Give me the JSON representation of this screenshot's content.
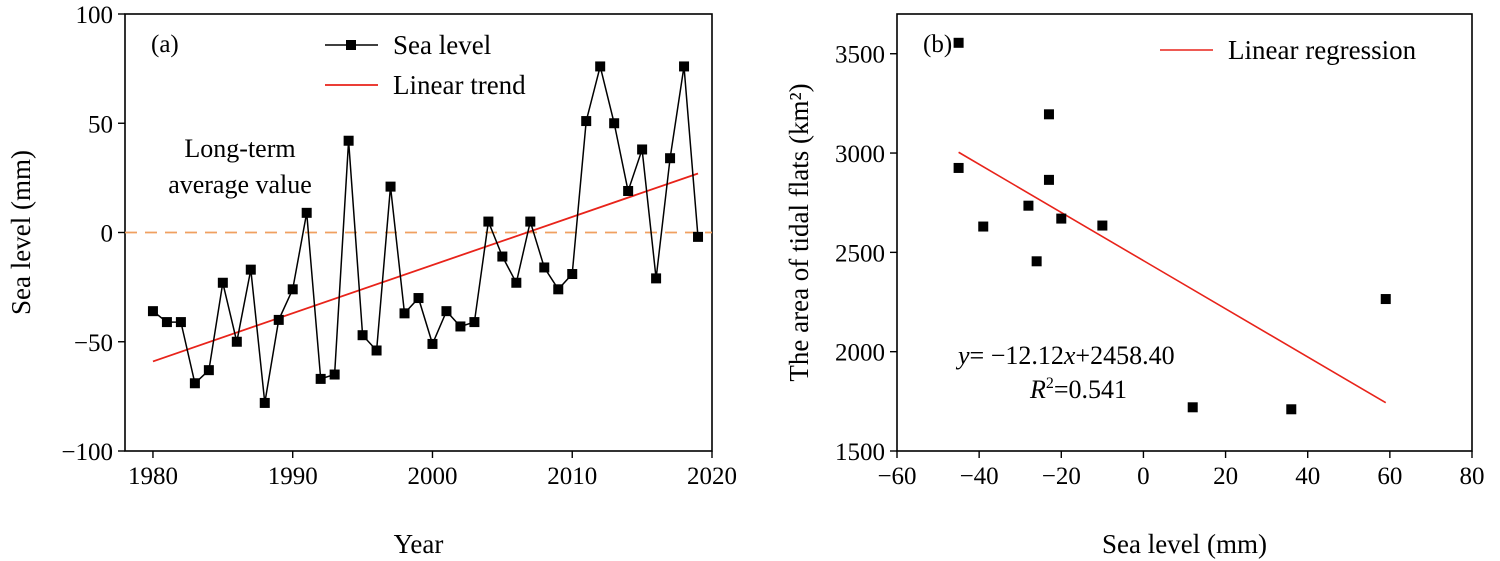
{
  "chart_data": [
    {
      "panel_label": "(a)",
      "type": "line",
      "xlabel": "Year",
      "ylabel": "Sea level (mm)",
      "xlim": [
        1978,
        2020
      ],
      "ylim": [
        -100,
        100
      ],
      "xticks": [
        "1980",
        "1990",
        "2000",
        "2010",
        "2020"
      ],
      "yticks": [
        "−100",
        "−50",
        "0",
        "50",
        "100"
      ],
      "legend_position": "top-center",
      "annotation": [
        "Long-term",
        "average value"
      ],
      "series": [
        {
          "name": "Sea level",
          "color": "#000000",
          "marker": "square",
          "x": [
            1980,
            1981,
            1982,
            1983,
            1984,
            1985,
            1986,
            1987,
            1988,
            1989,
            1990,
            1991,
            1992,
            1993,
            1994,
            1995,
            1996,
            1997,
            1998,
            1999,
            2000,
            2001,
            2002,
            2003,
            2004,
            2005,
            2006,
            2007,
            2008,
            2009,
            2010,
            2011,
            2012,
            2013,
            2014,
            2015,
            2016,
            2017,
            2018,
            2019
          ],
          "values": [
            -36,
            -41,
            -41,
            -69,
            -63,
            -23,
            -50,
            -17,
            -78,
            -40,
            -26,
            9,
            -67,
            -65,
            42,
            -47,
            -54,
            21,
            -37,
            -30,
            -51,
            -36,
            -43,
            -41,
            5,
            -11,
            -23,
            5,
            -16,
            -26,
            -19,
            51,
            76,
            50,
            19,
            38,
            -21,
            34,
            76,
            -2
          ]
        },
        {
          "name": "Linear trend",
          "color": "#e8231a",
          "x": [
            1980,
            2019
          ],
          "values": [
            -59,
            27
          ]
        }
      ],
      "reference_line": {
        "value": 0,
        "color": "#f0a060",
        "style": "dashed"
      }
    },
    {
      "panel_label": "(b)",
      "type": "scatter",
      "xlabel": "Sea level (mm)",
      "ylabel": "The area of tidal flats (km²)",
      "xlim": [
        -60,
        80
      ],
      "ylim": [
        1500,
        3700
      ],
      "xticks": [
        "−60",
        "−40",
        "−20",
        "0",
        "20",
        "40",
        "60",
        "80"
      ],
      "yticks": [
        "1500",
        "2000",
        "2500",
        "3000",
        "3500"
      ],
      "legend_position": "top-right",
      "points": {
        "color": "#000000",
        "marker": "square",
        "x": [
          -45,
          -45,
          -39,
          -28,
          -26,
          -23,
          -23,
          -20,
          -10,
          12,
          36,
          59
        ],
        "values": [
          3555,
          2925,
          2630,
          2735,
          2455,
          3195,
          2865,
          2670,
          2635,
          1720,
          1710,
          2265
        ]
      },
      "regression": {
        "name": "Linear regression",
        "color": "#e8231a",
        "x": [
          -45,
          59
        ],
        "values": [
          3004,
          1743
        ]
      },
      "equation": {
        "lhs": "y",
        "text": "= −12.12",
        "var": "x",
        "rest": "+2458.40"
      },
      "r2": {
        "symbol": "R",
        "text": "=0.541"
      }
    }
  ]
}
